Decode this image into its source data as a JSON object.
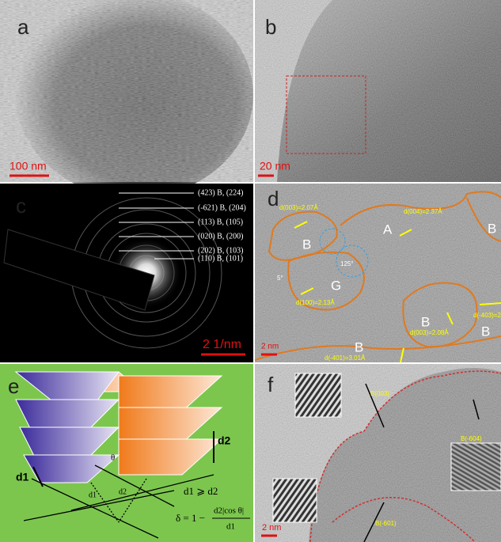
{
  "panels": [
    {
      "letter": "a",
      "scale_bar": "100 nm"
    },
    {
      "letter": "b",
      "scale_bar": "20 nm"
    },
    {
      "letter": "c",
      "scale_bar": "2 1/nm",
      "rings": [
        "(423) B, (224)",
        "(-621) B, (204)",
        "(113) B, (105)",
        "(020) B, (200)",
        "(202) B, (103)",
        "(110) B, (101)"
      ]
    },
    {
      "letter": "d",
      "scale_bar": "2 nm",
      "labels": [
        "d(003)=2.07Å",
        "A",
        "B",
        "B",
        "125°",
        "5°",
        "G",
        "d(100)=2.13Å",
        "d(004)=2.37Å",
        "B",
        "d(003)=2.08Å",
        "B",
        "d(-403)=2",
        "B",
        "d(-401)=3.01Å"
      ]
    },
    {
      "letter": "e",
      "labels": {
        "big_d1": "d1",
        "big_d2": "d2",
        "theta": "θ",
        "small_d1": "d1",
        "small_d2": "d2",
        "relation": "d1 ⩾ d2",
        "formula_lhs": "δ = 1 −",
        "formula_num": "d2|cos θ|",
        "formula_den": "d1"
      }
    },
    {
      "letter": "f",
      "scale_bar": "2 nm",
      "labels": [
        "B(003)",
        "B(-604)",
        "B(-601)"
      ]
    }
  ]
}
